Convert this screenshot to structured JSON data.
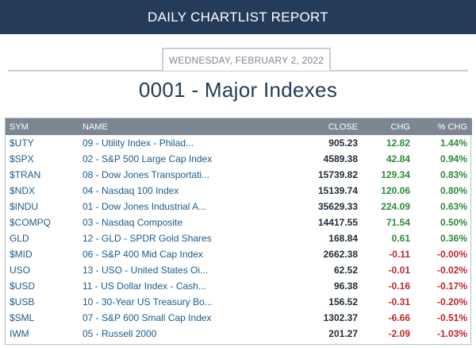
{
  "header": {
    "title": "DAILY CHARTLIST REPORT"
  },
  "report": {
    "date": "WEDNESDAY, FEBRUARY 2, 2022",
    "list_title": "0001 - Major Indexes"
  },
  "table": {
    "columns": [
      "SYM",
      "NAME",
      "CLOSE",
      "CHG",
      "% CHG"
    ],
    "rows": [
      {
        "sym": "$UTY",
        "name": "09 - Utility Index - Philad...",
        "close": "905.23",
        "chg": "12.82",
        "pct": "1.44%",
        "dir": "pos"
      },
      {
        "sym": "$SPX",
        "name": "02 - S&P 500 Large Cap Index",
        "close": "4589.38",
        "chg": "42.84",
        "pct": "0.94%",
        "dir": "pos"
      },
      {
        "sym": "$TRAN",
        "name": "08 - Dow Jones Transportati...",
        "close": "15739.82",
        "chg": "129.34",
        "pct": "0.83%",
        "dir": "pos"
      },
      {
        "sym": "$NDX",
        "name": "04 - Nasdaq 100 Index",
        "close": "15139.74",
        "chg": "120.06",
        "pct": "0.80%",
        "dir": "pos"
      },
      {
        "sym": "$INDU",
        "name": "01 - Dow Jones Industrial A...",
        "close": "35629.33",
        "chg": "224.09",
        "pct": "0.63%",
        "dir": "pos"
      },
      {
        "sym": "$COMPQ",
        "name": "03 - Nasdaq Composite",
        "close": "14417.55",
        "chg": "71.54",
        "pct": "0.50%",
        "dir": "pos"
      },
      {
        "sym": "GLD",
        "name": "12 - GLD - SPDR Gold Shares",
        "close": "168.84",
        "chg": "0.61",
        "pct": "0.36%",
        "dir": "pos"
      },
      {
        "sym": "$MID",
        "name": "06 - S&P 400 Mid Cap Index",
        "close": "2662.38",
        "chg": "-0.11",
        "pct": "-0.00%",
        "dir": "neg"
      },
      {
        "sym": "USO",
        "name": "13 - USO - United States Oi...",
        "close": "62.52",
        "chg": "-0.01",
        "pct": "-0.02%",
        "dir": "neg"
      },
      {
        "sym": "$USD",
        "name": "11 - US Dollar Index - Cash...",
        "close": "96.38",
        "chg": "-0.16",
        "pct": "-0.17%",
        "dir": "neg"
      },
      {
        "sym": "$USB",
        "name": "10 - 30-Year US Treasury Bo...",
        "close": "156.52",
        "chg": "-0.31",
        "pct": "-0.20%",
        "dir": "neg"
      },
      {
        "sym": "$SML",
        "name": "07 - S&P 600 Small Cap Index",
        "close": "1302.37",
        "chg": "-6.66",
        "pct": "-0.51%",
        "dir": "neg"
      },
      {
        "sym": "IWM",
        "name": "05 - Russell 2000",
        "close": "201.27",
        "chg": "-2.09",
        "pct": "-1.03%",
        "dir": "neg"
      }
    ]
  },
  "colors": {
    "header_bg": "#243b5a",
    "table_header_bg": "#7d8794",
    "positive": "#2e8b3a",
    "negative": "#c0262b",
    "link": "#1f5a8a"
  }
}
